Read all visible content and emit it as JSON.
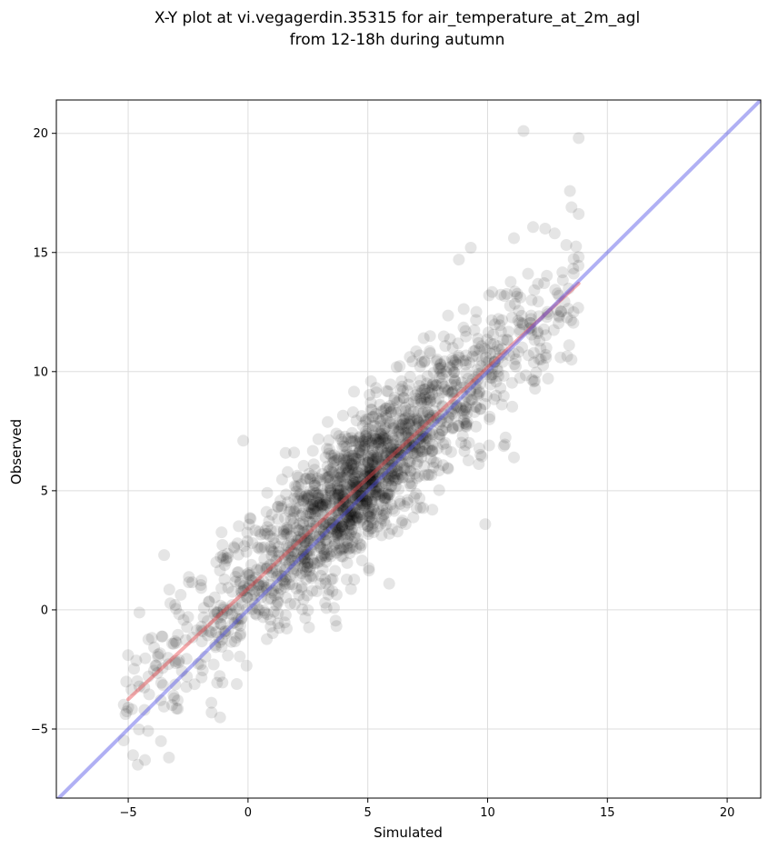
{
  "chart_data": {
    "type": "scatter",
    "title_lines": [
      "X-Y plot at vi.vegagerdin.35315 for air_temperature_at_2m_agl",
      "from 12-18h during autumn"
    ],
    "xlabel": "Simulated",
    "ylabel": "Observed",
    "xlim": [
      -8,
      21.4
    ],
    "ylim": [
      -7.9,
      21.4
    ],
    "xticks": [
      -5,
      0,
      5,
      10,
      15,
      20
    ],
    "yticks": [
      -5,
      0,
      5,
      10,
      15,
      20
    ],
    "xtick_labels": [
      "−5",
      "0",
      "5",
      "10",
      "15",
      "20"
    ],
    "ytick_labels": [
      "−5",
      "0",
      "5",
      "10",
      "15",
      "20"
    ],
    "grid": true,
    "point_color": "#000000",
    "point_opacity": 0.1,
    "point_count": 1800,
    "point_distribution": {
      "x_range": [
        -5.2,
        13.8
      ],
      "relation": "observed ≈ 0.92 · simulated + 0.9, spread ≈ 1.5"
    },
    "sample_points": [
      [
        11.5,
        20.1
      ],
      [
        13.8,
        19.8
      ],
      [
        13.5,
        16.9
      ],
      [
        12.4,
        16.0
      ],
      [
        12.8,
        15.8
      ],
      [
        11.1,
        15.6
      ],
      [
        9.3,
        15.2
      ],
      [
        8.8,
        14.7
      ],
      [
        -4.8,
        -6.1
      ],
      [
        -4.6,
        -6.5
      ],
      [
        -4.3,
        -6.3
      ],
      [
        -3.3,
        -6.2
      ],
      [
        -5.0,
        -4.1
      ],
      [
        -3.5,
        2.3
      ],
      [
        -0.2,
        7.1
      ],
      [
        9.9,
        3.6
      ],
      [
        11.1,
        6.4
      ],
      [
        13.5,
        10.5
      ],
      [
        3.8,
        7.3
      ],
      [
        0.8,
        1.8
      ]
    ],
    "series": [
      {
        "kind": "regression",
        "color": "#e8474c",
        "x": [
          -5.0,
          13.8
        ],
        "y": [
          -3.75,
          13.7
        ]
      },
      {
        "kind": "identity",
        "color": "#4f4fe6",
        "x": [
          -8,
          21.4
        ],
        "y": [
          -8,
          21.4
        ]
      }
    ]
  }
}
